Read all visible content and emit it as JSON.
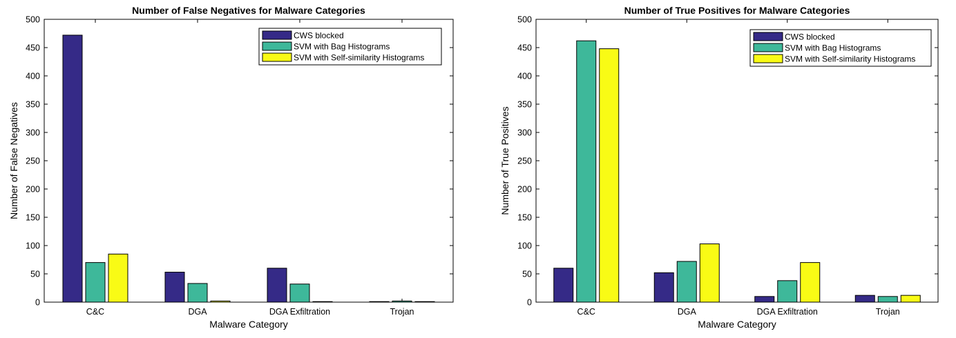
{
  "chart_data": [
    {
      "type": "bar",
      "title": "Number of False Negatives for Malware Categories",
      "xlabel": "Malware Category",
      "ylabel": "Number of False Negatives",
      "categories": [
        "C&C",
        "DGA",
        "DGA Exfiltration",
        "Trojan"
      ],
      "ylim": [
        0,
        500
      ],
      "yticks": [
        0,
        50,
        100,
        150,
        200,
        250,
        300,
        350,
        400,
        450,
        500
      ],
      "legend_position": "top-right",
      "grid": false,
      "series": [
        {
          "name": "CWS blocked",
          "color": "#352a87",
          "values": [
            472,
            53,
            60,
            0
          ]
        },
        {
          "name": "SVM with Bag Histograms",
          "color": "#3eb89a",
          "values": [
            70,
            33,
            32,
            2
          ]
        },
        {
          "name": "SVM with Self-similarity Histograms",
          "color": "#f9fb15",
          "values": [
            85,
            2,
            0,
            0
          ]
        }
      ]
    },
    {
      "type": "bar",
      "title": "Number of True Positives for Malware Categories",
      "xlabel": "Malware Category",
      "ylabel": "Number of True Positives",
      "categories": [
        "C&C",
        "DGA",
        "DGA Exfiltration",
        "Trojan"
      ],
      "ylim": [
        0,
        500
      ],
      "yticks": [
        0,
        50,
        100,
        150,
        200,
        250,
        300,
        350,
        400,
        450,
        500
      ],
      "legend_position": "top-right",
      "grid": false,
      "series": [
        {
          "name": "CWS blocked",
          "color": "#352a87",
          "values": [
            60,
            52,
            10,
            12
          ]
        },
        {
          "name": "SVM with Bag Histograms",
          "color": "#3eb89a",
          "values": [
            462,
            72,
            38,
            10
          ]
        },
        {
          "name": "SVM with Self-similarity Histograms",
          "color": "#f9fb15",
          "values": [
            448,
            103,
            70,
            12
          ]
        }
      ]
    }
  ]
}
